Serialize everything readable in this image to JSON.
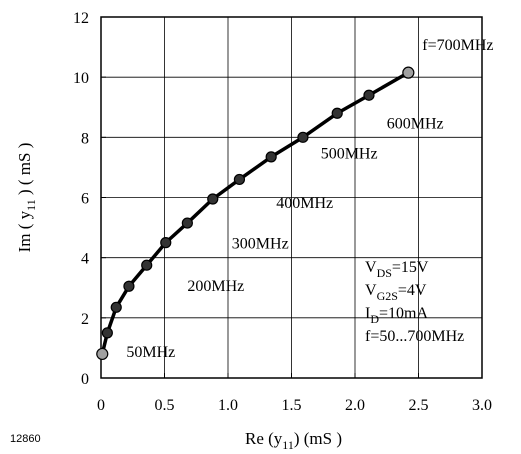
{
  "chart_data": {
    "type": "line",
    "xlabel": "Re (y11) (mS)",
    "ylabel": "Im (y11) (mS)",
    "xlim": [
      0,
      3.0
    ],
    "ylim": [
      0,
      12
    ],
    "x_ticks": [
      "0",
      "0.5",
      "1.0",
      "1.5",
      "2.0",
      "2.5",
      "3.0"
    ],
    "y_ticks": [
      "0",
      "2",
      "4",
      "6",
      "8",
      "10",
      "12"
    ],
    "grid": true,
    "series": [
      {
        "x": [
          0.01,
          0.05,
          0.12,
          0.22,
          0.36,
          0.51,
          0.68,
          0.88,
          1.09,
          1.34,
          1.59,
          1.86,
          2.11,
          2.42
        ],
        "y": [
          0.8,
          1.5,
          2.35,
          3.05,
          3.75,
          4.5,
          5.15,
          5.95,
          6.6,
          7.35,
          8.0,
          8.8,
          9.4,
          10.15
        ]
      }
    ],
    "annotations": [
      {
        "text": "50MHz",
        "x": 0.2,
        "y": 0.7
      },
      {
        "text": "200MHz",
        "x": 0.68,
        "y": 2.9
      },
      {
        "text": "300MHz",
        "x": 1.03,
        "y": 4.3
      },
      {
        "text": "400MHz",
        "x": 1.38,
        "y": 5.65
      },
      {
        "text": "500MHz",
        "x": 1.73,
        "y": 7.3
      },
      {
        "text": "600MHz",
        "x": 2.25,
        "y": 8.3
      },
      {
        "text": "f=700MHz",
        "x": 2.53,
        "y": 10.9
      }
    ],
    "conditions": [
      "VDS=15V",
      "VG2S=4V",
      "ID=10mA",
      "f=50...700MHz"
    ],
    "figure_code": "12860"
  }
}
